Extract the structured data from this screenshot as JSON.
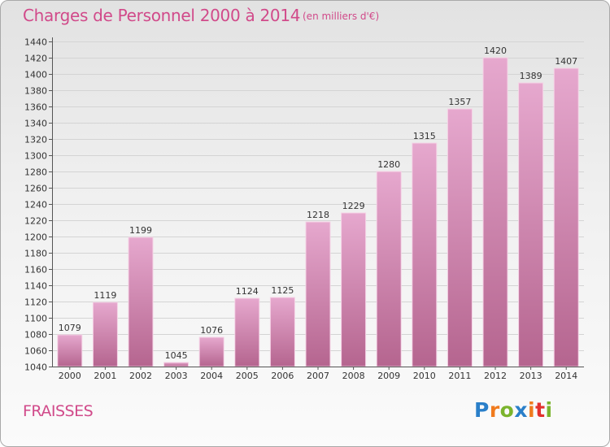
{
  "header": {
    "title": "Charges de Personnel 2000 à 2014",
    "subtitle": "(en milliers d'€)"
  },
  "footer": {
    "city": "FRAISSES",
    "logo_letters": [
      "P",
      "r",
      "o",
      "x",
      "i",
      "t",
      "i"
    ]
  },
  "colors": {
    "bar_top": "#e6a8ce",
    "bar_bottom": "#b5658f",
    "accent": "#d14a8a"
  },
  "chart_data": {
    "type": "bar",
    "title": "Charges de Personnel 2000 à 2014",
    "subtitle": "(en milliers d'€)",
    "categories": [
      "2000",
      "2001",
      "2002",
      "2003",
      "2004",
      "2005",
      "2006",
      "2007",
      "2008",
      "2009",
      "2010",
      "2011",
      "2012",
      "2013",
      "2014"
    ],
    "values": [
      1079,
      1119,
      1199,
      1045,
      1076,
      1124,
      1125,
      1218,
      1229,
      1280,
      1315,
      1357,
      1420,
      1389,
      1407
    ],
    "ylim": [
      1040,
      1440
    ],
    "ytick_step": 20,
    "xlabel": "",
    "ylabel": "",
    "grid": true
  }
}
